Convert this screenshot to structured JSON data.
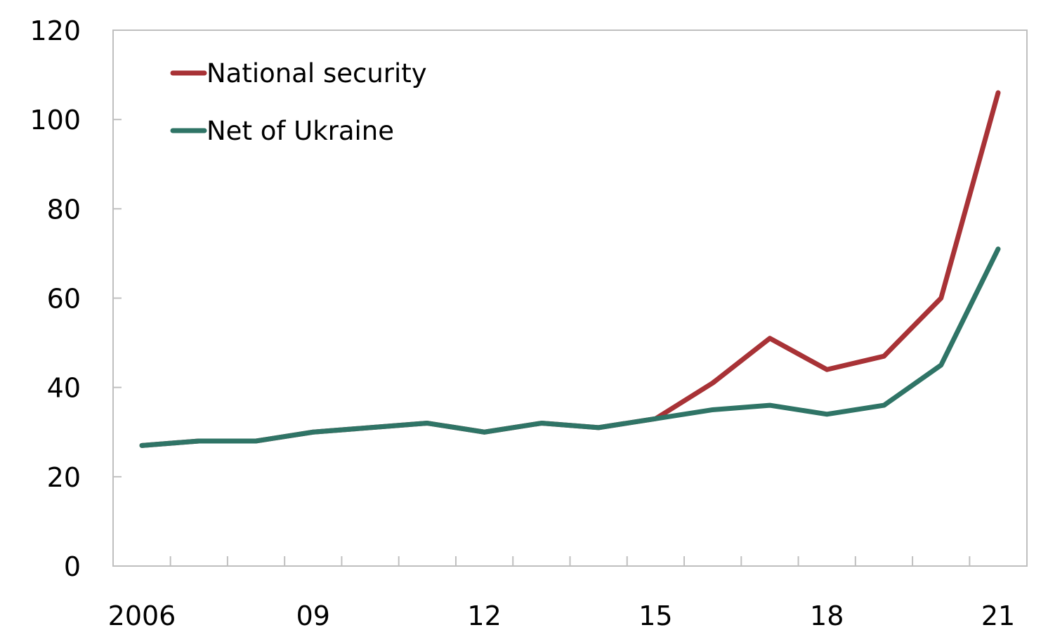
{
  "chart_data": {
    "type": "line",
    "title": "",
    "xlabel": "",
    "ylabel": "",
    "x": [
      2006,
      2007,
      2008,
      2009,
      2010,
      2011,
      2012,
      2013,
      2014,
      2015,
      2016,
      2017,
      2018,
      2019,
      2020,
      2021
    ],
    "x_tick_labels": [
      {
        "value": 2006,
        "label": "2006"
      },
      {
        "value": 2009,
        "label": "09"
      },
      {
        "value": 2012,
        "label": "12"
      },
      {
        "value": 2015,
        "label": "15"
      },
      {
        "value": 2018,
        "label": "18"
      },
      {
        "value": 2021,
        "label": "21"
      }
    ],
    "y_ticks": [
      0,
      20,
      40,
      60,
      80,
      100,
      120
    ],
    "ylim": [
      0,
      120
    ],
    "xlim": [
      2005.5,
      2021.5
    ],
    "grid": false,
    "legend_position": "top-left",
    "series": [
      {
        "name": "National security",
        "color": "#a83236",
        "values": [
          27,
          28,
          28,
          30,
          31,
          32,
          30,
          32,
          31,
          33,
          41,
          51,
          44,
          47,
          60,
          106
        ]
      },
      {
        "name": "Net of Ukraine",
        "color": "#2f7466",
        "values": [
          27,
          28,
          28,
          30,
          31,
          32,
          30,
          32,
          31,
          33,
          35,
          36,
          34,
          36,
          45,
          71
        ]
      }
    ]
  }
}
